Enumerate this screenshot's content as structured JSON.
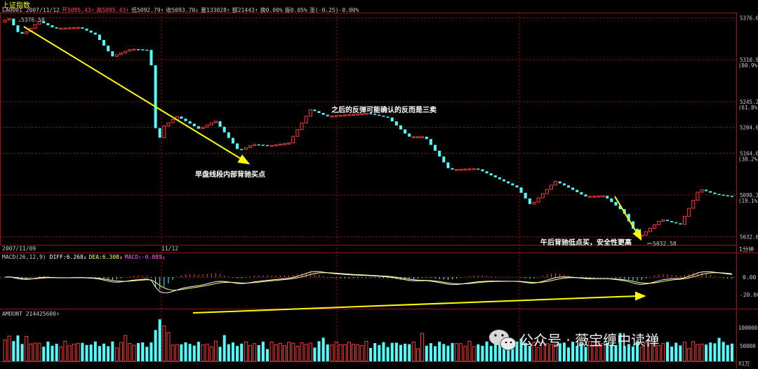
{
  "header": {
    "title": "上证指数",
    "info_parts": [
      {
        "text": "LA0001 2007/11/12",
        "color": "#cccccc"
      },
      {
        "text": "开5095.43↑",
        "color": "#ff4a4a"
      },
      {
        "text": "高5095.43↑",
        "color": "#ff4a4a"
      },
      {
        "text": "低5092.79↑",
        "color": "#cccccc"
      },
      {
        "text": "收5093.70↓",
        "color": "#cccccc"
      },
      {
        "text": "量133028↑",
        "color": "#cccccc"
      },
      {
        "text": "额21443↑",
        "color": "#cccccc"
      },
      {
        "text": "换0.00%",
        "color": "#cccccc"
      },
      {
        "text": "振0.05%",
        "color": "#cccccc"
      },
      {
        "text": "涨(-0.25)-0.00%",
        "color": "#cccccc"
      }
    ]
  },
  "price_axis": {
    "ticks": [
      "5376.6",
      "5310.9",
      "5245.2",
      "5204.6",
      "5164.0",
      "5098.3",
      "5032.6"
    ],
    "pct_labels": [
      "(80.9%)",
      "(61.8%)",
      "(38.2%)",
      "(19.1%)"
    ]
  },
  "dates": {
    "left": "2007/11/09",
    "mid": "11/12",
    "period": "1分钟"
  },
  "macd": {
    "label": "MACD(26,12,9)",
    "diff": "DIFF:6.268↓",
    "dea": "DEA:6.308↓",
    "macd": "MACD:-0.089↓",
    "ticks": [
      "0.00",
      "-20.00"
    ]
  },
  "volume": {
    "label": "AMOUNT 214425600↑",
    "ticks": [
      "100000",
      "50000"
    ],
    "unit": "X1万"
  },
  "annotations": {
    "high_value": "5376.58",
    "low_value": "5032.58",
    "rebound_note": "之后的反弹可能确认的反而是三卖",
    "early_buy": "早盘线段内部背驰买点",
    "afternoon_buy": "午后背驰低点买，安全性更高"
  },
  "watermark": "公众号 · 薇宝缠中读禅",
  "colors": {
    "up": "#ff3c3c",
    "down": "#54ffff",
    "arrow": "#ffff00",
    "dea": "#ffff66",
    "diff": "#ffffff",
    "grid": "#a01010"
  },
  "chart_data": {
    "type": "candlestick-intraday",
    "title": "上证指数",
    "symbol": "LA0001",
    "date": "2007/11/12",
    "interval": "1分钟",
    "ylim": [
      5020,
      5385
    ],
    "high": 5376.58,
    "low": 5032.58,
    "close_path": [
      {
        "t": 0,
        "v": 5370
      },
      {
        "t": 6,
        "v": 5376.58
      },
      {
        "t": 14,
        "v": 5350
      },
      {
        "t": 20,
        "v": 5356
      },
      {
        "t": 28,
        "v": 5372
      },
      {
        "t": 40,
        "v": 5360
      },
      {
        "t": 58,
        "v": 5362
      },
      {
        "t": 70,
        "v": 5350
      },
      {
        "t": 82,
        "v": 5316
      },
      {
        "t": 96,
        "v": 5328
      },
      {
        "t": 110,
        "v": 5326
      },
      {
        "t": 115,
        "v": 5170
      },
      {
        "t": 119,
        "v": 5205
      },
      {
        "t": 130,
        "v": 5222
      },
      {
        "t": 146,
        "v": 5202
      },
      {
        "t": 158,
        "v": 5215
      },
      {
        "t": 175,
        "v": 5168
      },
      {
        "t": 186,
        "v": 5178
      },
      {
        "t": 198,
        "v": 5176
      },
      {
        "t": 212,
        "v": 5180
      },
      {
        "t": 228,
        "v": 5233
      },
      {
        "t": 240,
        "v": 5222
      },
      {
        "t": 270,
        "v": 5227
      },
      {
        "t": 285,
        "v": 5220
      },
      {
        "t": 300,
        "v": 5190
      },
      {
        "t": 312,
        "v": 5190
      },
      {
        "t": 330,
        "v": 5138
      },
      {
        "t": 350,
        "v": 5140
      },
      {
        "t": 380,
        "v": 5110
      },
      {
        "t": 390,
        "v": 5082
      },
      {
        "t": 408,
        "v": 5120
      },
      {
        "t": 416,
        "v": 5112
      },
      {
        "t": 430,
        "v": 5096
      },
      {
        "t": 444,
        "v": 5097
      },
      {
        "t": 458,
        "v": 5072
      },
      {
        "t": 468,
        "v": 5035
      },
      {
        "t": 470,
        "v": 5032.58
      },
      {
        "t": 486,
        "v": 5060
      },
      {
        "t": 500,
        "v": 5052
      },
      {
        "t": 514,
        "v": 5108
      },
      {
        "t": 525,
        "v": 5100
      },
      {
        "t": 538,
        "v": 5096
      }
    ],
    "macd_ylim": [
      -30,
      15
    ],
    "macd_ticks": [
      0,
      -20
    ],
    "volume_ticks": [
      100000,
      50000
    ],
    "volume_unit": "X1万"
  }
}
